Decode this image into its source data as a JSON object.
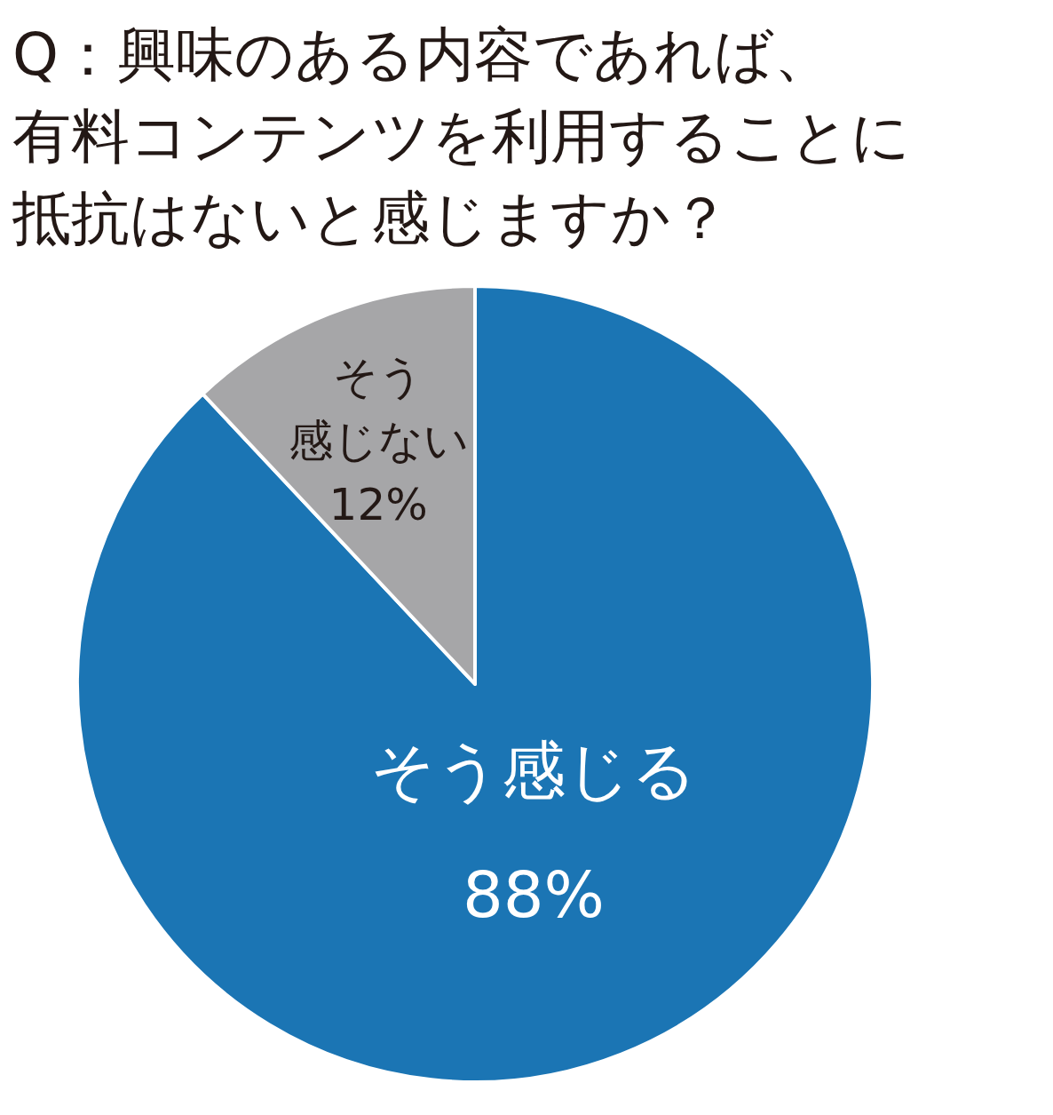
{
  "chart_data": {
    "type": "pie",
    "title": "Q：興味のある内容であれば、有料コンテンツを利用することに抵抗はないと感じますか？",
    "categories": [
      "そう感じる",
      "そう感じない"
    ],
    "values": [
      88,
      12
    ],
    "value_labels": [
      "88%",
      "12%"
    ],
    "colors": [
      "#1b75b4",
      "#a6a6a8"
    ],
    "legend": false
  }
}
